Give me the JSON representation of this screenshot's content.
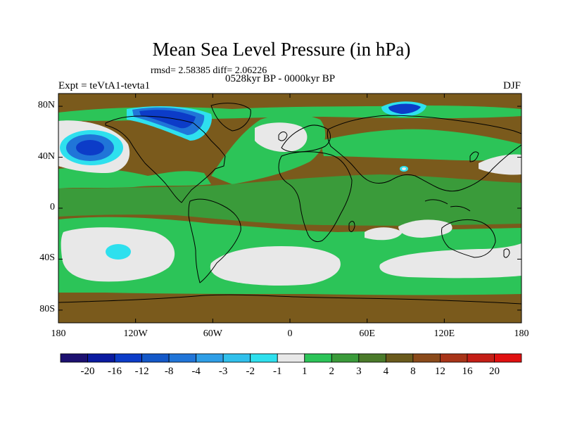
{
  "title": "Mean Sea Level Pressure (in hPa)",
  "stats": "rmsd= 2.58385  diff= 2.06226",
  "period": "0528kyr BP - 0000kyr BP",
  "experiment": "Expt = teVtA1-tevta1",
  "season": "DJF",
  "y_axis": {
    "ticks": [
      "80N",
      "40N",
      "0",
      "40S",
      "80S"
    ],
    "values": [
      80,
      40,
      0,
      -40,
      -80
    ]
  },
  "x_axis": {
    "ticks": [
      "180",
      "120W",
      "60W",
      "0",
      "60E",
      "120E",
      "180"
    ],
    "values": [
      -180,
      -120,
      -60,
      0,
      60,
      120,
      180
    ]
  },
  "colorbar": {
    "boundaries": [
      "-20",
      "-16",
      "-12",
      "-8",
      "-4",
      "-3",
      "-2",
      "-1",
      "1",
      "2",
      "3",
      "4",
      "8",
      "12",
      "16",
      "20"
    ],
    "colors": [
      "#1c1070",
      "#0a1aa0",
      "#0c3cc8",
      "#1458c8",
      "#2075d8",
      "#2e9ee6",
      "#30c0ec",
      "#2ee0ee",
      "#e8e8e8",
      "#2cc458",
      "#3a9b3a",
      "#4a7a2a",
      "#6a5a1c",
      "#8a4a1a",
      "#a83418",
      "#c41e16",
      "#e01010"
    ]
  },
  "palette": {
    "background_field": "#7a5a1c",
    "land_field": "#6a5a1c",
    "green_band": "#2cc458",
    "mid_green": "#3a9b3a",
    "white_zone": "#e8e8e8",
    "low_cyan": "#2ee0ee",
    "low_blue": "#2075d8",
    "deep_blue": "#0c3cc8",
    "coast": "#000000"
  }
}
